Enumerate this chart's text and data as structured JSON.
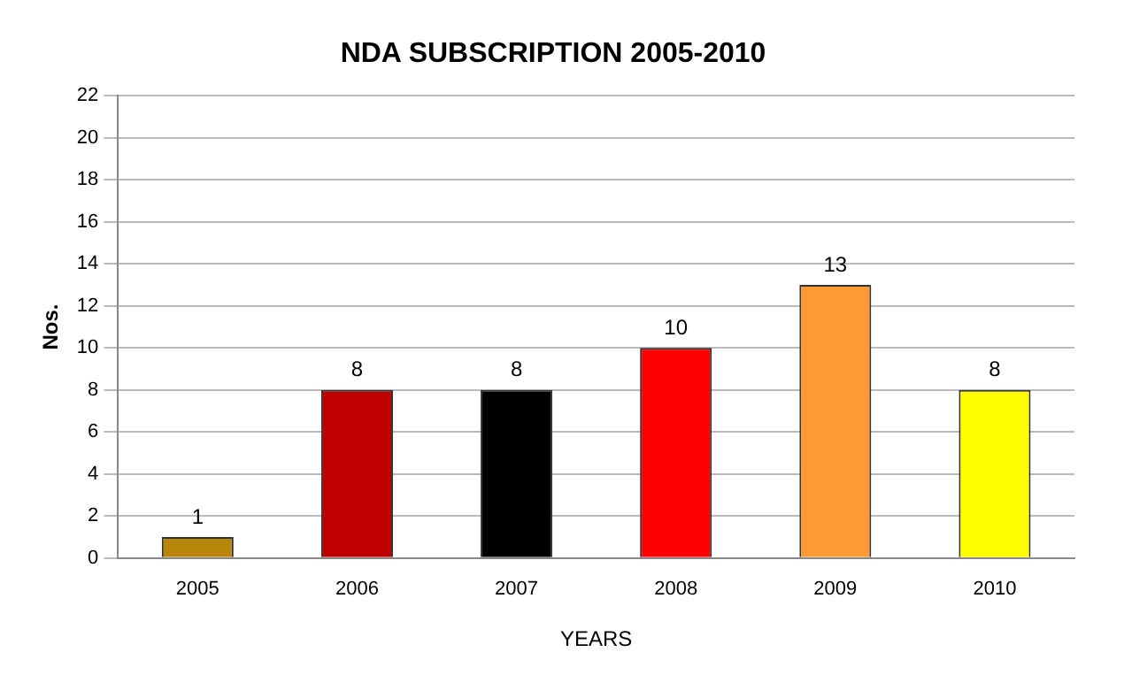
{
  "chart_data": {
    "type": "bar",
    "title": "NDA SUBSCRIPTION 2005-2010",
    "xlabel": "YEARS",
    "ylabel": "Nos.",
    "categories": [
      "2005",
      "2006",
      "2007",
      "2008",
      "2009",
      "2010"
    ],
    "values": [
      1,
      8,
      8,
      10,
      13,
      8
    ],
    "colors": [
      "#b8860b",
      "#c00000",
      "#000000",
      "#ff0000",
      "#ff9933",
      "#ffff00"
    ],
    "ylim": [
      0,
      22
    ],
    "yticks": [
      0,
      2,
      4,
      6,
      8,
      10,
      12,
      14,
      16,
      18,
      20,
      22
    ],
    "grid": "y",
    "legend": false,
    "data_labels": true
  }
}
